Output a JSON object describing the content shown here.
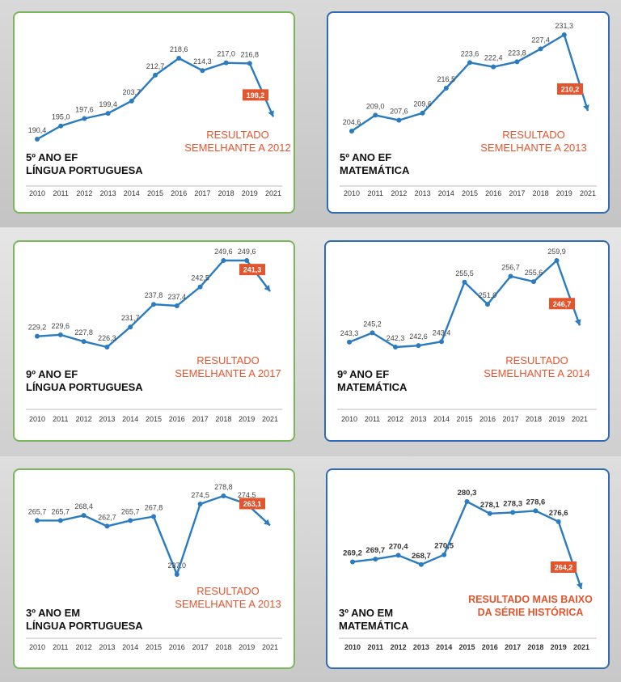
{
  "colors": {
    "line": "#2a7bbf",
    "highlight_box": "#e4552e",
    "note_text": "#e4552e",
    "border_green": "#7ab75b",
    "border_blue": "#2f6cb5"
  },
  "chart_data": [
    {
      "type": "line",
      "title_lines": [
        "5º ANO EF",
        "LÍNGUA PORTUGUESA"
      ],
      "note_lines": [
        "RESULTADO",
        "SEMELHANTE A 2012"
      ],
      "x": [
        "2010",
        "2011",
        "2012",
        "2013",
        "2014",
        "2015",
        "2016",
        "2017",
        "2018",
        "2019",
        "2021"
      ],
      "values": [
        190.4,
        195.0,
        197.6,
        199.4,
        203.7,
        212.7,
        218.6,
        214.3,
        217.0,
        216.8,
        198.2
      ],
      "value_labels": [
        "190,4",
        "195,0",
        "197,6",
        "199,4",
        "203,7",
        "212,7",
        "218,6",
        "214,3",
        "217,0",
        "216,8",
        "198,2"
      ],
      "highlight_index": 10,
      "border": "green"
    },
    {
      "type": "line",
      "title_lines": [
        "5º ANO EF",
        "MATEMÁTICA"
      ],
      "note_lines": [
        "RESULTADO",
        "SEMELHANTE A 2013"
      ],
      "x": [
        "2010",
        "2011",
        "2012",
        "2013",
        "2014",
        "2015",
        "2016",
        "2017",
        "2018",
        "2019",
        "2021"
      ],
      "values": [
        204.6,
        209.0,
        207.6,
        209.6,
        216.5,
        223.6,
        222.4,
        223.8,
        227.4,
        231.3,
        210.2
      ],
      "value_labels": [
        "204,6",
        "209,0",
        "207,6",
        "209,6",
        "216,5",
        "223,6",
        "222,4",
        "223,8",
        "227,4",
        "231,3",
        "210,2"
      ],
      "highlight_index": 10,
      "border": "blue"
    },
    {
      "type": "line",
      "title_lines": [
        "9º ANO EF",
        "LÍNGUA PORTUGUESA"
      ],
      "note_lines": [
        "RESULTADO",
        "SEMELHANTE A 2017"
      ],
      "x": [
        "2010",
        "2011",
        "2012",
        "2013",
        "2014",
        "2015",
        "2016",
        "2017",
        "2018",
        "2019",
        "2021"
      ],
      "values": [
        229.2,
        229.6,
        227.8,
        226.3,
        231.7,
        237.8,
        237.4,
        242.5,
        249.6,
        249.6,
        241.3
      ],
      "value_labels": [
        "229,2",
        "229,6",
        "227,8",
        "226,3",
        "231,7",
        "237,8",
        "237,4",
        "242,5",
        "249,6",
        "249,6",
        "241,3"
      ],
      "highlight_index": 10,
      "border": "green"
    },
    {
      "type": "line",
      "title_lines": [
        "9º ANO EF",
        "MATEMÁTICA"
      ],
      "note_lines": [
        "RESULTADO",
        "SEMELHANTE A 2014"
      ],
      "x": [
        "2010",
        "2011",
        "2012",
        "2013",
        "2014",
        "2015",
        "2016",
        "2017",
        "2018",
        "2019",
        "2021"
      ],
      "values": [
        243.3,
        245.2,
        242.3,
        242.6,
        243.4,
        255.5,
        251.0,
        256.7,
        255.6,
        259.9,
        246.7
      ],
      "value_labels": [
        "243,3",
        "245,2",
        "242,3",
        "242,6",
        "243,4",
        "255,5",
        "251,0",
        "256,7",
        "255,6",
        "259,9",
        "246,7"
      ],
      "highlight_index": 10,
      "border": "blue"
    },
    {
      "type": "line",
      "title_lines": [
        "3º ANO EM",
        "LÍNGUA PORTUGUESA"
      ],
      "note_lines": [
        "RESULTADO",
        "SEMELHANTE A 2013"
      ],
      "x": [
        "2010",
        "2011",
        "2012",
        "2013",
        "2014",
        "2015",
        "2016",
        "2017",
        "2018",
        "2019",
        "2021"
      ],
      "values": [
        265.7,
        265.7,
        268.4,
        262.7,
        265.7,
        267.8,
        237.0,
        274.5,
        278.8,
        274.5,
        263.1
      ],
      "value_labels": [
        "265,7",
        "265,7",
        "268,4",
        "262,7",
        "265,7",
        "267,8",
        "237,0",
        "274,5",
        "278,8",
        "274,5",
        "263,1"
      ],
      "highlight_index": 10,
      "border": "green"
    },
    {
      "type": "line",
      "title_lines": [
        "3º ANO EM",
        "MATEMÁTICA"
      ],
      "note_lines": [
        "RESULTADO MAIS BAIXO",
        "DA SÉRIE HISTÓRICA"
      ],
      "x": [
        "2010",
        "2011",
        "2012",
        "2013",
        "2014",
        "2015",
        "2016",
        "2017",
        "2018",
        "2019",
        "2021"
      ],
      "values": [
        269.2,
        269.7,
        270.4,
        268.7,
        270.5,
        280.3,
        278.1,
        278.3,
        278.6,
        276.6,
        264.2
      ],
      "value_labels": [
        "269,2",
        "269,7",
        "270,4",
        "268,7",
        "270,5",
        "280,3",
        "278,1",
        "278,3",
        "278,6",
        "276,6",
        "264,2"
      ],
      "highlight_index": 10,
      "border": "blue"
    }
  ]
}
